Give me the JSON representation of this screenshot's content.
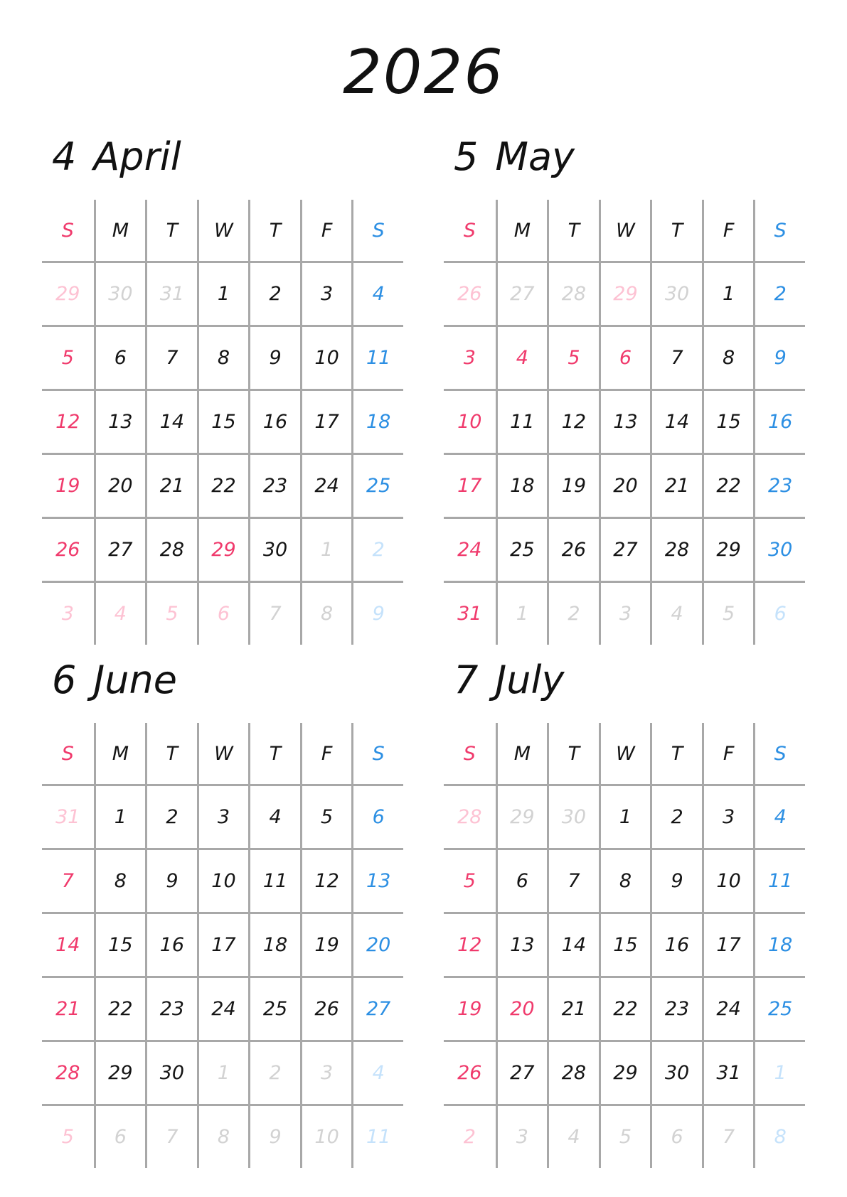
{
  "year": "2026",
  "weekdays": [
    [
      "S",
      "r"
    ],
    [
      "M",
      "k"
    ],
    [
      "T",
      "k"
    ],
    [
      "W",
      "k"
    ],
    [
      "T",
      "k"
    ],
    [
      "F",
      "k"
    ],
    [
      "S",
      "b"
    ]
  ],
  "colors": {
    "sunday_holiday": "#f03a6c",
    "saturday": "#2c8fe3",
    "weekday": "#151515",
    "grid": "#a8a8a8",
    "other_month_sunday": "#fdc2d3",
    "other_month_weekday": "#d2d2d2",
    "other_month_saturday": "#c5e2fb"
  },
  "months": [
    {
      "number": "4",
      "name": "April",
      "weeks": [
        [
          [
            "29",
            "rp"
          ],
          [
            "30",
            "g"
          ],
          [
            "31",
            "g"
          ],
          [
            "1",
            "k"
          ],
          [
            "2",
            "k"
          ],
          [
            "3",
            "k"
          ],
          [
            "4",
            "b"
          ]
        ],
        [
          [
            "5",
            "r"
          ],
          [
            "6",
            "k"
          ],
          [
            "7",
            "k"
          ],
          [
            "8",
            "k"
          ],
          [
            "9",
            "k"
          ],
          [
            "10",
            "k"
          ],
          [
            "11",
            "b"
          ]
        ],
        [
          [
            "12",
            "r"
          ],
          [
            "13",
            "k"
          ],
          [
            "14",
            "k"
          ],
          [
            "15",
            "k"
          ],
          [
            "16",
            "k"
          ],
          [
            "17",
            "k"
          ],
          [
            "18",
            "b"
          ]
        ],
        [
          [
            "19",
            "r"
          ],
          [
            "20",
            "k"
          ],
          [
            "21",
            "k"
          ],
          [
            "22",
            "k"
          ],
          [
            "23",
            "k"
          ],
          [
            "24",
            "k"
          ],
          [
            "25",
            "b"
          ]
        ],
        [
          [
            "26",
            "r"
          ],
          [
            "27",
            "k"
          ],
          [
            "28",
            "k"
          ],
          [
            "29",
            "r"
          ],
          [
            "30",
            "k"
          ],
          [
            "1",
            "g"
          ],
          [
            "2",
            "bp"
          ]
        ],
        [
          [
            "3",
            "rp"
          ],
          [
            "4",
            "rp"
          ],
          [
            "5",
            "rp"
          ],
          [
            "6",
            "rp"
          ],
          [
            "7",
            "g"
          ],
          [
            "8",
            "g"
          ],
          [
            "9",
            "bp"
          ]
        ]
      ]
    },
    {
      "number": "5",
      "name": "May",
      "weeks": [
        [
          [
            "26",
            "rp"
          ],
          [
            "27",
            "g"
          ],
          [
            "28",
            "g"
          ],
          [
            "29",
            "rp"
          ],
          [
            "30",
            "g"
          ],
          [
            "1",
            "k"
          ],
          [
            "2",
            "b"
          ]
        ],
        [
          [
            "3",
            "r"
          ],
          [
            "4",
            "r"
          ],
          [
            "5",
            "r"
          ],
          [
            "6",
            "r"
          ],
          [
            "7",
            "k"
          ],
          [
            "8",
            "k"
          ],
          [
            "9",
            "b"
          ]
        ],
        [
          [
            "10",
            "r"
          ],
          [
            "11",
            "k"
          ],
          [
            "12",
            "k"
          ],
          [
            "13",
            "k"
          ],
          [
            "14",
            "k"
          ],
          [
            "15",
            "k"
          ],
          [
            "16",
            "b"
          ]
        ],
        [
          [
            "17",
            "r"
          ],
          [
            "18",
            "k"
          ],
          [
            "19",
            "k"
          ],
          [
            "20",
            "k"
          ],
          [
            "21",
            "k"
          ],
          [
            "22",
            "k"
          ],
          [
            "23",
            "b"
          ]
        ],
        [
          [
            "24",
            "r"
          ],
          [
            "25",
            "k"
          ],
          [
            "26",
            "k"
          ],
          [
            "27",
            "k"
          ],
          [
            "28",
            "k"
          ],
          [
            "29",
            "k"
          ],
          [
            "30",
            "b"
          ]
        ],
        [
          [
            "31",
            "r"
          ],
          [
            "1",
            "g"
          ],
          [
            "2",
            "g"
          ],
          [
            "3",
            "g"
          ],
          [
            "4",
            "g"
          ],
          [
            "5",
            "g"
          ],
          [
            "6",
            "bp"
          ]
        ]
      ]
    },
    {
      "number": "6",
      "name": "June",
      "weeks": [
        [
          [
            "31",
            "rp"
          ],
          [
            "1",
            "k"
          ],
          [
            "2",
            "k"
          ],
          [
            "3",
            "k"
          ],
          [
            "4",
            "k"
          ],
          [
            "5",
            "k"
          ],
          [
            "6",
            "b"
          ]
        ],
        [
          [
            "7",
            "r"
          ],
          [
            "8",
            "k"
          ],
          [
            "9",
            "k"
          ],
          [
            "10",
            "k"
          ],
          [
            "11",
            "k"
          ],
          [
            "12",
            "k"
          ],
          [
            "13",
            "b"
          ]
        ],
        [
          [
            "14",
            "r"
          ],
          [
            "15",
            "k"
          ],
          [
            "16",
            "k"
          ],
          [
            "17",
            "k"
          ],
          [
            "18",
            "k"
          ],
          [
            "19",
            "k"
          ],
          [
            "20",
            "b"
          ]
        ],
        [
          [
            "21",
            "r"
          ],
          [
            "22",
            "k"
          ],
          [
            "23",
            "k"
          ],
          [
            "24",
            "k"
          ],
          [
            "25",
            "k"
          ],
          [
            "26",
            "k"
          ],
          [
            "27",
            "b"
          ]
        ],
        [
          [
            "28",
            "r"
          ],
          [
            "29",
            "k"
          ],
          [
            "30",
            "k"
          ],
          [
            "1",
            "g"
          ],
          [
            "2",
            "g"
          ],
          [
            "3",
            "g"
          ],
          [
            "4",
            "bp"
          ]
        ],
        [
          [
            "5",
            "rp"
          ],
          [
            "6",
            "g"
          ],
          [
            "7",
            "g"
          ],
          [
            "8",
            "g"
          ],
          [
            "9",
            "g"
          ],
          [
            "10",
            "g"
          ],
          [
            "11",
            "bp"
          ]
        ]
      ]
    },
    {
      "number": "7",
      "name": "July",
      "weeks": [
        [
          [
            "28",
            "rp"
          ],
          [
            "29",
            "g"
          ],
          [
            "30",
            "g"
          ],
          [
            "1",
            "k"
          ],
          [
            "2",
            "k"
          ],
          [
            "3",
            "k"
          ],
          [
            "4",
            "b"
          ]
        ],
        [
          [
            "5",
            "r"
          ],
          [
            "6",
            "k"
          ],
          [
            "7",
            "k"
          ],
          [
            "8",
            "k"
          ],
          [
            "9",
            "k"
          ],
          [
            "10",
            "k"
          ],
          [
            "11",
            "b"
          ]
        ],
        [
          [
            "12",
            "r"
          ],
          [
            "13",
            "k"
          ],
          [
            "14",
            "k"
          ],
          [
            "15",
            "k"
          ],
          [
            "16",
            "k"
          ],
          [
            "17",
            "k"
          ],
          [
            "18",
            "b"
          ]
        ],
        [
          [
            "19",
            "r"
          ],
          [
            "20",
            "r"
          ],
          [
            "21",
            "k"
          ],
          [
            "22",
            "k"
          ],
          [
            "23",
            "k"
          ],
          [
            "24",
            "k"
          ],
          [
            "25",
            "b"
          ]
        ],
        [
          [
            "26",
            "r"
          ],
          [
            "27",
            "k"
          ],
          [
            "28",
            "k"
          ],
          [
            "29",
            "k"
          ],
          [
            "30",
            "k"
          ],
          [
            "31",
            "k"
          ],
          [
            "1",
            "bp"
          ]
        ],
        [
          [
            "2",
            "rp"
          ],
          [
            "3",
            "g"
          ],
          [
            "4",
            "g"
          ],
          [
            "5",
            "g"
          ],
          [
            "6",
            "g"
          ],
          [
            "7",
            "g"
          ],
          [
            "8",
            "bp"
          ]
        ]
      ]
    }
  ]
}
